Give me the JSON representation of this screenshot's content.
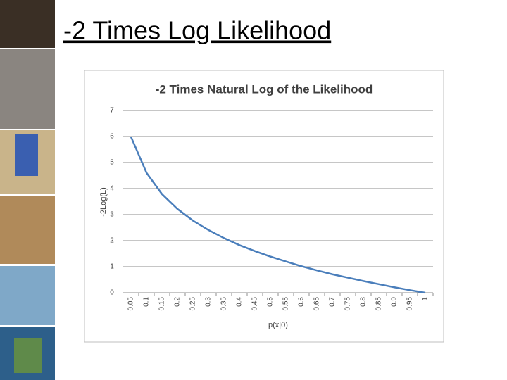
{
  "slide": {
    "title": "-2 Times Log Likelihood"
  },
  "chart_data": {
    "type": "line",
    "title": "-2 Times Natural Log of the Likelihood",
    "x_label": "p(x|0)",
    "y_label": "-2Log(L)",
    "categories": [
      "0.05",
      "0.1",
      "0.15",
      "0.2",
      "0.25",
      "0.3",
      "0.35",
      "0.4",
      "0.45",
      "0.5",
      "0.55",
      "0.6",
      "0.65",
      "0.7",
      "0.75",
      "0.8",
      "0.85",
      "0.9",
      "0.95",
      "1"
    ],
    "series": [
      {
        "name": "-2Log(L)",
        "color": "#4a7ebb",
        "values": [
          5.99,
          4.61,
          3.79,
          3.22,
          2.77,
          2.41,
          2.1,
          1.83,
          1.6,
          1.39,
          1.2,
          1.02,
          0.86,
          0.71,
          0.58,
          0.45,
          0.33,
          0.21,
          0.1,
          0
        ]
      }
    ],
    "ylim": [
      0,
      7
    ],
    "yticks": [
      0,
      1,
      2,
      3,
      4,
      5,
      6,
      7
    ],
    "grid": true
  }
}
